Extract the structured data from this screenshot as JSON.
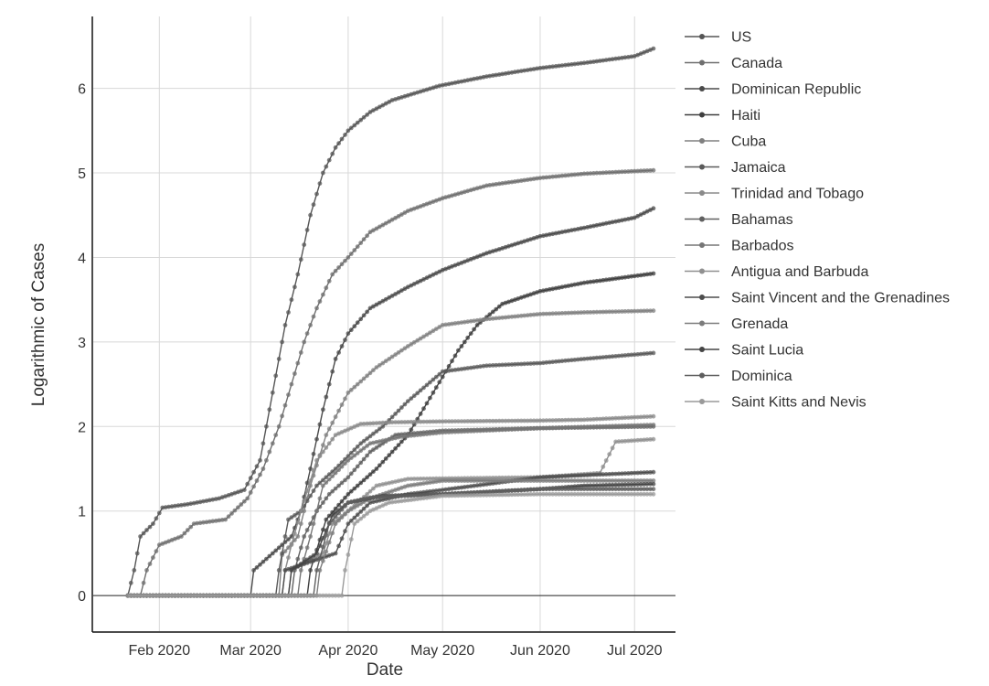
{
  "chart_data": {
    "type": "line",
    "xlabel": "Date",
    "ylabel": "Logarithmic of Cases",
    "x_range": [
      "2020-01-11",
      "2020-07-14"
    ],
    "ylim": [
      -0.42,
      6.85
    ],
    "x_ticks": [
      {
        "date": "2020-02-01",
        "label": "Feb 2020"
      },
      {
        "date": "2020-03-01",
        "label": "Mar 2020"
      },
      {
        "date": "2020-04-01",
        "label": "Apr 2020"
      },
      {
        "date": "2020-05-01",
        "label": "May 2020"
      },
      {
        "date": "2020-06-01",
        "label": "Jun 2020"
      },
      {
        "date": "2020-07-01",
        "label": "Jul 2020"
      }
    ],
    "y_ticks": [
      {
        "value": 0,
        "label": "0"
      },
      {
        "value": 1,
        "label": "1"
      },
      {
        "value": 2,
        "label": "2"
      },
      {
        "value": 3,
        "label": "3"
      },
      {
        "value": 4,
        "label": "4"
      },
      {
        "value": 5,
        "label": "5"
      },
      {
        "value": 6,
        "label": "6"
      }
    ],
    "grid": true,
    "legend_position": "right",
    "series": [
      {
        "name": "US",
        "color": "#555555",
        "points": [
          [
            "2020-01-22",
            0
          ],
          [
            "2020-01-24",
            0.3
          ],
          [
            "2020-01-26",
            0.7
          ],
          [
            "2020-01-30",
            0.85
          ],
          [
            "2020-02-02",
            1.04
          ],
          [
            "2020-02-10",
            1.08
          ],
          [
            "2020-02-20",
            1.15
          ],
          [
            "2020-02-28",
            1.25
          ],
          [
            "2020-03-04",
            1.6
          ],
          [
            "2020-03-08",
            2.4
          ],
          [
            "2020-03-12",
            3.2
          ],
          [
            "2020-03-16",
            3.8
          ],
          [
            "2020-03-20",
            4.5
          ],
          [
            "2020-03-24",
            5.0
          ],
          [
            "2020-03-28",
            5.3
          ],
          [
            "2020-04-01",
            5.5
          ],
          [
            "2020-04-08",
            5.72
          ],
          [
            "2020-04-15",
            5.86
          ],
          [
            "2020-04-30",
            6.03
          ],
          [
            "2020-05-15",
            6.14
          ],
          [
            "2020-06-01",
            6.24
          ],
          [
            "2020-06-15",
            6.3
          ],
          [
            "2020-07-01",
            6.38
          ],
          [
            "2020-07-07",
            6.47
          ]
        ]
      },
      {
        "name": "Canada",
        "color": "#6f6f6f",
        "points": [
          [
            "2020-01-22",
            0
          ],
          [
            "2020-01-26",
            0
          ],
          [
            "2020-01-28",
            0.3
          ],
          [
            "2020-02-01",
            0.6
          ],
          [
            "2020-02-08",
            0.7
          ],
          [
            "2020-02-12",
            0.85
          ],
          [
            "2020-02-22",
            0.9
          ],
          [
            "2020-02-29",
            1.15
          ],
          [
            "2020-03-05",
            1.5
          ],
          [
            "2020-03-10",
            2.0
          ],
          [
            "2020-03-14",
            2.5
          ],
          [
            "2020-03-18",
            3.0
          ],
          [
            "2020-03-22",
            3.4
          ],
          [
            "2020-03-27",
            3.8
          ],
          [
            "2020-04-01",
            4.0
          ],
          [
            "2020-04-08",
            4.3
          ],
          [
            "2020-04-20",
            4.55
          ],
          [
            "2020-05-01",
            4.7
          ],
          [
            "2020-05-15",
            4.85
          ],
          [
            "2020-06-01",
            4.94
          ],
          [
            "2020-06-15",
            4.99
          ],
          [
            "2020-07-01",
            5.02
          ],
          [
            "2020-07-07",
            5.03
          ]
        ]
      },
      {
        "name": "Dominican Republic",
        "color": "#4a4a4a",
        "points": [
          [
            "2020-01-22",
            0
          ],
          [
            "2020-03-01",
            0
          ],
          [
            "2020-03-02",
            0.3
          ],
          [
            "2020-03-14",
            0.7
          ],
          [
            "2020-03-17",
            1.0
          ],
          [
            "2020-03-20",
            1.5
          ],
          [
            "2020-03-24",
            2.2
          ],
          [
            "2020-03-28",
            2.8
          ],
          [
            "2020-04-01",
            3.1
          ],
          [
            "2020-04-08",
            3.4
          ],
          [
            "2020-04-20",
            3.65
          ],
          [
            "2020-05-01",
            3.85
          ],
          [
            "2020-05-15",
            4.05
          ],
          [
            "2020-06-01",
            4.25
          ],
          [
            "2020-06-15",
            4.35
          ],
          [
            "2020-07-01",
            4.47
          ],
          [
            "2020-07-07",
            4.58
          ]
        ]
      },
      {
        "name": "Haiti",
        "color": "#3f3f3f",
        "points": [
          [
            "2020-01-22",
            0
          ],
          [
            "2020-03-19",
            0
          ],
          [
            "2020-03-20",
            0.3
          ],
          [
            "2020-03-25",
            0.9
          ],
          [
            "2020-04-01",
            1.2
          ],
          [
            "2020-04-10",
            1.5
          ],
          [
            "2020-04-20",
            1.9
          ],
          [
            "2020-04-28",
            2.4
          ],
          [
            "2020-05-06",
            2.9
          ],
          [
            "2020-05-12",
            3.2
          ],
          [
            "2020-05-20",
            3.45
          ],
          [
            "2020-06-01",
            3.6
          ],
          [
            "2020-06-15",
            3.7
          ],
          [
            "2020-07-07",
            3.81
          ]
        ]
      },
      {
        "name": "Cuba",
        "color": "#808080",
        "points": [
          [
            "2020-01-22",
            0
          ],
          [
            "2020-03-10",
            0
          ],
          [
            "2020-03-11",
            0.48
          ],
          [
            "2020-03-16",
            0.7
          ],
          [
            "2020-03-20",
            1.3
          ],
          [
            "2020-03-25",
            1.9
          ],
          [
            "2020-04-01",
            2.4
          ],
          [
            "2020-04-10",
            2.7
          ],
          [
            "2020-04-20",
            2.95
          ],
          [
            "2020-05-01",
            3.2
          ],
          [
            "2020-05-15",
            3.27
          ],
          [
            "2020-06-01",
            3.33
          ],
          [
            "2020-06-15",
            3.35
          ],
          [
            "2020-07-07",
            3.37
          ]
        ]
      },
      {
        "name": "Jamaica",
        "color": "#5a5a5a",
        "points": [
          [
            "2020-01-22",
            0
          ],
          [
            "2020-03-09",
            0
          ],
          [
            "2020-03-10",
            0.3
          ],
          [
            "2020-03-13",
            0.9
          ],
          [
            "2020-03-17",
            1.0
          ],
          [
            "2020-03-22",
            1.3
          ],
          [
            "2020-03-28",
            1.5
          ],
          [
            "2020-04-05",
            1.8
          ],
          [
            "2020-04-12",
            2.0
          ],
          [
            "2020-04-20",
            2.3
          ],
          [
            "2020-05-01",
            2.65
          ],
          [
            "2020-05-15",
            2.72
          ],
          [
            "2020-06-01",
            2.75
          ],
          [
            "2020-06-15",
            2.8
          ],
          [
            "2020-07-07",
            2.87
          ]
        ]
      },
      {
        "name": "Trinidad and Tobago",
        "color": "#8a8a8a",
        "points": [
          [
            "2020-01-22",
            0
          ],
          [
            "2020-03-11",
            0
          ],
          [
            "2020-03-12",
            0.3
          ],
          [
            "2020-03-14",
            0.6
          ],
          [
            "2020-03-17",
            1.0
          ],
          [
            "2020-03-22",
            1.6
          ],
          [
            "2020-03-28",
            1.9
          ],
          [
            "2020-04-05",
            2.03
          ],
          [
            "2020-04-15",
            2.05
          ],
          [
            "2020-05-01",
            2.06
          ],
          [
            "2020-06-01",
            2.07
          ],
          [
            "2020-06-15",
            2.08
          ],
          [
            "2020-07-07",
            2.12
          ]
        ]
      },
      {
        "name": "Bahamas",
        "color": "#606060",
        "points": [
          [
            "2020-01-22",
            0
          ],
          [
            "2020-03-14",
            0
          ],
          [
            "2020-03-15",
            0.3
          ],
          [
            "2020-03-18",
            0.7
          ],
          [
            "2020-03-22",
            1.0
          ],
          [
            "2020-03-26",
            1.2
          ],
          [
            "2020-04-01",
            1.4
          ],
          [
            "2020-04-08",
            1.7
          ],
          [
            "2020-04-16",
            1.9
          ],
          [
            "2020-05-01",
            1.95
          ],
          [
            "2020-06-01",
            1.98
          ],
          [
            "2020-07-07",
            2.0
          ]
        ]
      },
      {
        "name": "Barbados",
        "color": "#767676",
        "points": [
          [
            "2020-01-22",
            0
          ],
          [
            "2020-03-16",
            0
          ],
          [
            "2020-03-17",
            0.3
          ],
          [
            "2020-03-20",
            0.7
          ],
          [
            "2020-03-24",
            1.3
          ],
          [
            "2020-04-01",
            1.6
          ],
          [
            "2020-04-08",
            1.8
          ],
          [
            "2020-04-18",
            1.88
          ],
          [
            "2020-05-01",
            1.93
          ],
          [
            "2020-06-01",
            1.98
          ],
          [
            "2020-07-07",
            2.02
          ]
        ]
      },
      {
        "name": "Antigua and Barbuda",
        "color": "#909090",
        "points": [
          [
            "2020-01-22",
            0
          ],
          [
            "2020-03-13",
            0
          ],
          [
            "2020-03-14",
            0.3
          ],
          [
            "2020-03-24",
            0.5
          ],
          [
            "2020-03-27",
            0.85
          ],
          [
            "2020-04-01",
            1.0
          ],
          [
            "2020-04-10",
            1.3
          ],
          [
            "2020-04-20",
            1.38
          ],
          [
            "2020-06-01",
            1.4
          ],
          [
            "2020-06-20",
            1.45
          ],
          [
            "2020-06-25",
            1.82
          ],
          [
            "2020-07-07",
            1.85
          ]
        ]
      },
      {
        "name": "Saint Vincent and the Grenadines",
        "color": "#4d4d4d",
        "points": [
          [
            "2020-01-22",
            0
          ],
          [
            "2020-03-11",
            0
          ],
          [
            "2020-03-12",
            0.3
          ],
          [
            "2020-03-28",
            0.5
          ],
          [
            "2020-04-01",
            0.85
          ],
          [
            "2020-04-08",
            1.1
          ],
          [
            "2020-04-20",
            1.2
          ],
          [
            "2020-05-01",
            1.25
          ],
          [
            "2020-06-01",
            1.4
          ],
          [
            "2020-07-07",
            1.46
          ]
        ]
      },
      {
        "name": "Grenada",
        "color": "#7c7c7c",
        "points": [
          [
            "2020-01-22",
            0
          ],
          [
            "2020-03-22",
            0
          ],
          [
            "2020-03-23",
            0.3
          ],
          [
            "2020-03-28",
            0.85
          ],
          [
            "2020-04-01",
            1.0
          ],
          [
            "2020-04-08",
            1.15
          ],
          [
            "2020-04-20",
            1.3
          ],
          [
            "2020-05-01",
            1.36
          ],
          [
            "2020-06-01",
            1.36
          ],
          [
            "2020-07-07",
            1.36
          ]
        ]
      },
      {
        "name": "Saint Lucia",
        "color": "#454545",
        "points": [
          [
            "2020-01-22",
            0
          ],
          [
            "2020-03-13",
            0
          ],
          [
            "2020-03-14",
            0.3
          ],
          [
            "2020-03-22",
            0.5
          ],
          [
            "2020-03-27",
            0.95
          ],
          [
            "2020-04-01",
            1.1
          ],
          [
            "2020-04-12",
            1.18
          ],
          [
            "2020-05-01",
            1.2
          ],
          [
            "2020-06-01",
            1.26
          ],
          [
            "2020-06-15",
            1.3
          ],
          [
            "2020-07-07",
            1.32
          ]
        ]
      },
      {
        "name": "Dominica",
        "color": "#5e5e5e",
        "points": [
          [
            "2020-01-22",
            0
          ],
          [
            "2020-03-21",
            0
          ],
          [
            "2020-03-22",
            0.3
          ],
          [
            "2020-03-26",
            0.85
          ],
          [
            "2020-04-01",
            1.1
          ],
          [
            "2020-04-08",
            1.16
          ],
          [
            "2020-05-01",
            1.2
          ],
          [
            "2020-06-01",
            1.26
          ],
          [
            "2020-07-07",
            1.26
          ]
        ]
      },
      {
        "name": "Saint Kitts and Nevis",
        "color": "#9a9a9a",
        "points": [
          [
            "2020-01-22",
            0
          ],
          [
            "2020-03-30",
            0
          ],
          [
            "2020-03-31",
            0.3
          ],
          [
            "2020-04-03",
            0.85
          ],
          [
            "2020-04-08",
            1.0
          ],
          [
            "2020-04-14",
            1.1
          ],
          [
            "2020-05-01",
            1.18
          ],
          [
            "2020-06-01",
            1.2
          ],
          [
            "2020-07-07",
            1.2
          ]
        ]
      }
    ]
  }
}
